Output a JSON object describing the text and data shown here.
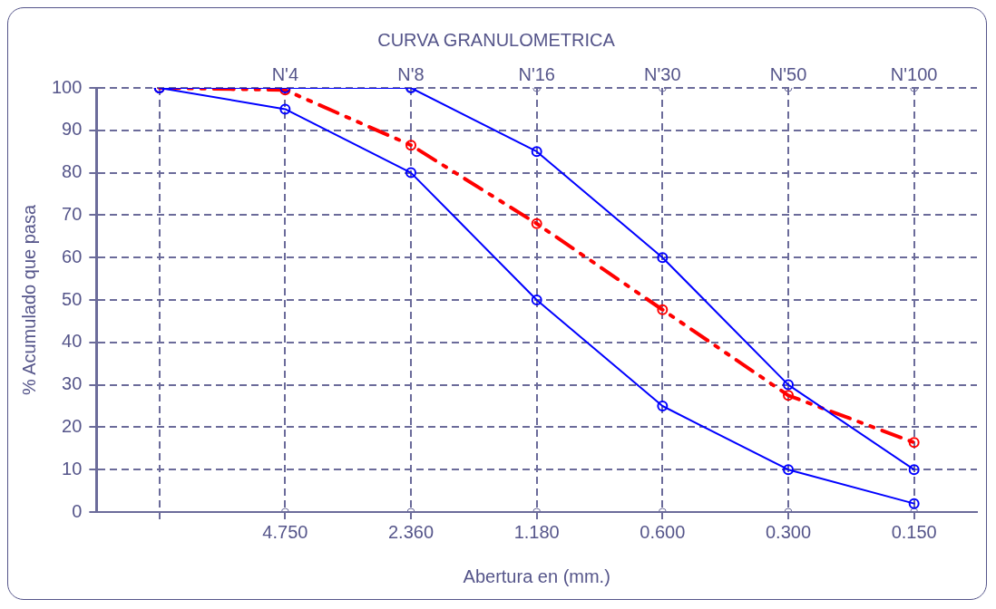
{
  "chart_data": {
    "type": "line",
    "title": "CURVA GRANULOMETRICA",
    "xlabel": "Abertura en (mm.)",
    "ylabel": "% Acumulado que pasa",
    "categories": [
      null,
      "4.750",
      "2.360",
      "1.180",
      "0.600",
      "0.300",
      "0.150"
    ],
    "series": [
      {
        "color": "#0000ff",
        "values": [
          100,
          100,
          100,
          85,
          60,
          30,
          10
        ],
        "marker": "circle",
        "line_style": "solid"
      },
      {
        "color": "#0000ff",
        "values": [
          100,
          95,
          80,
          50,
          25,
          10,
          2
        ],
        "marker": "circle",
        "line_style": "solid"
      },
      {
        "color": "#ff0000",
        "values": [
          100,
          99.5,
          86.5,
          68,
          47.7,
          27.5,
          16.4
        ],
        "marker": "circle",
        "line_style": "dashed"
      },
      {
        "type": "scatter",
        "color": "#6b6b9a",
        "values": [
          null,
          null,
          100,
          100,
          100,
          100,
          100
        ],
        "marker": "circle"
      },
      {
        "type": "scatter",
        "color": "#6b6b9a",
        "values": [
          null,
          0,
          0,
          0,
          0,
          0,
          0
        ],
        "marker": "circle"
      }
    ],
    "ylim": [
      0,
      100
    ],
    "yticks": [
      0,
      10,
      20,
      30,
      40,
      50,
      60,
      70,
      80,
      90,
      100
    ],
    "grid": true,
    "legend": false,
    "annotations": [
      "N'4",
      "N'8",
      "N'16",
      "N'30",
      "N'50",
      "N'100"
    ]
  }
}
